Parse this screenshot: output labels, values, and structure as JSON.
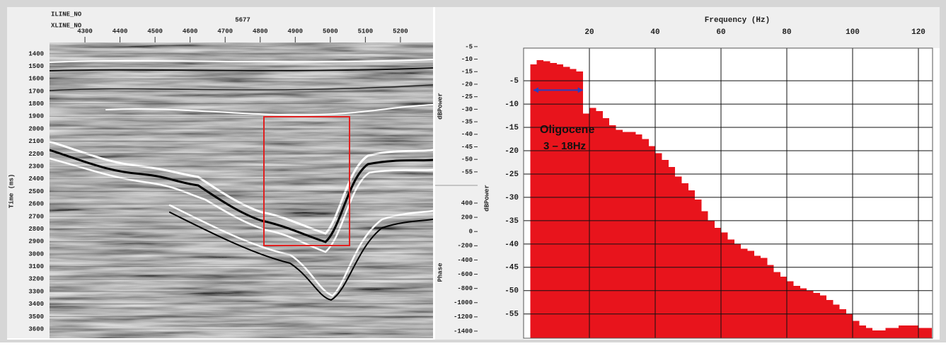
{
  "seismic_panel": {
    "inline_label": "ILINE_NO",
    "xline_label": "XLINE_NO",
    "inline_value": 5677,
    "ylabel": "Time (ms)",
    "xlim": [
      4199,
      5293
    ],
    "xticks": [
      4300,
      4400,
      4500,
      4600,
      4700,
      4800,
      4900,
      5000,
      5100,
      5200
    ],
    "ylim": [
      1310,
      3673
    ],
    "yticks": [
      1400,
      1500,
      1600,
      1700,
      1800,
      1900,
      2000,
      2100,
      2200,
      2300,
      2400,
      2500,
      2600,
      2700,
      2800,
      2900,
      3000,
      3100,
      3200,
      3300,
      3400,
      3500,
      3600
    ]
  },
  "side_panel": {
    "power": {
      "label": "dBPower",
      "ylim": [
        0.9,
        -60.4
      ],
      "yticks": [
        -5,
        -10,
        -15,
        -20,
        -25,
        -30,
        -35,
        -40,
        -45,
        -50,
        -55
      ]
    },
    "phase": {
      "label": "Phase",
      "ylim": [
        619,
        -1500
      ],
      "yticks": [
        400,
        200,
        0,
        -200,
        -400,
        -600,
        -800,
        -1000,
        -1200,
        -1400
      ]
    }
  },
  "chart_data": {
    "type": "histogram",
    "title": "Frequency (Hz)",
    "ylabel": "dBPower",
    "color": "#e8141c",
    "xlim": [
      0,
      124.3
    ],
    "xticks": [
      20,
      40,
      60,
      80,
      100,
      120
    ],
    "ylim": [
      -60.2,
      2
    ],
    "yticks": [
      -5,
      -10,
      -15,
      -20,
      -25,
      -30,
      -35,
      -40,
      -45,
      -50,
      -55
    ],
    "grid": true,
    "bins": [
      2,
      4,
      6,
      8,
      10,
      12,
      14,
      16,
      18,
      20,
      22,
      24,
      26,
      28,
      30,
      32,
      34,
      36,
      38,
      40,
      42,
      44,
      46,
      48,
      50,
      52,
      54,
      56,
      58,
      60,
      62,
      64,
      66,
      68,
      70,
      72,
      74,
      76,
      78,
      80,
      82,
      84,
      86,
      88,
      90,
      92,
      94,
      96,
      98,
      100,
      102,
      104,
      106,
      108,
      110,
      112,
      114,
      116,
      118,
      120,
      122,
      124
    ],
    "values": [
      -1.5,
      -0.6,
      -0.8,
      -1.2,
      -1.5,
      -2,
      -2.5,
      -3,
      -12,
      -10.8,
      -11.5,
      -13,
      -14.5,
      -15.5,
      -16,
      -16,
      -16.5,
      -17.5,
      -19,
      -20.5,
      -22,
      -23.5,
      -25.5,
      -27,
      -28.5,
      -30.5,
      -33,
      -35,
      -36.5,
      -37.5,
      -39,
      -40,
      -41,
      -41.5,
      -42.5,
      -43,
      -44.5,
      -46,
      -47,
      -48,
      -49,
      -49.5,
      -50,
      -50.5,
      -51,
      -52,
      -53,
      -54,
      -55,
      -56.5,
      -57.5,
      -58,
      -58.5,
      -58.5,
      -58,
      -58,
      -57.5,
      -57.5,
      -57.5,
      -58,
      -58
    ],
    "annotation": {
      "text": "Oligocene",
      "range_text": "3 – 18Hz",
      "arrow_x": [
        3,
        18
      ],
      "arrow_y": -7
    }
  }
}
